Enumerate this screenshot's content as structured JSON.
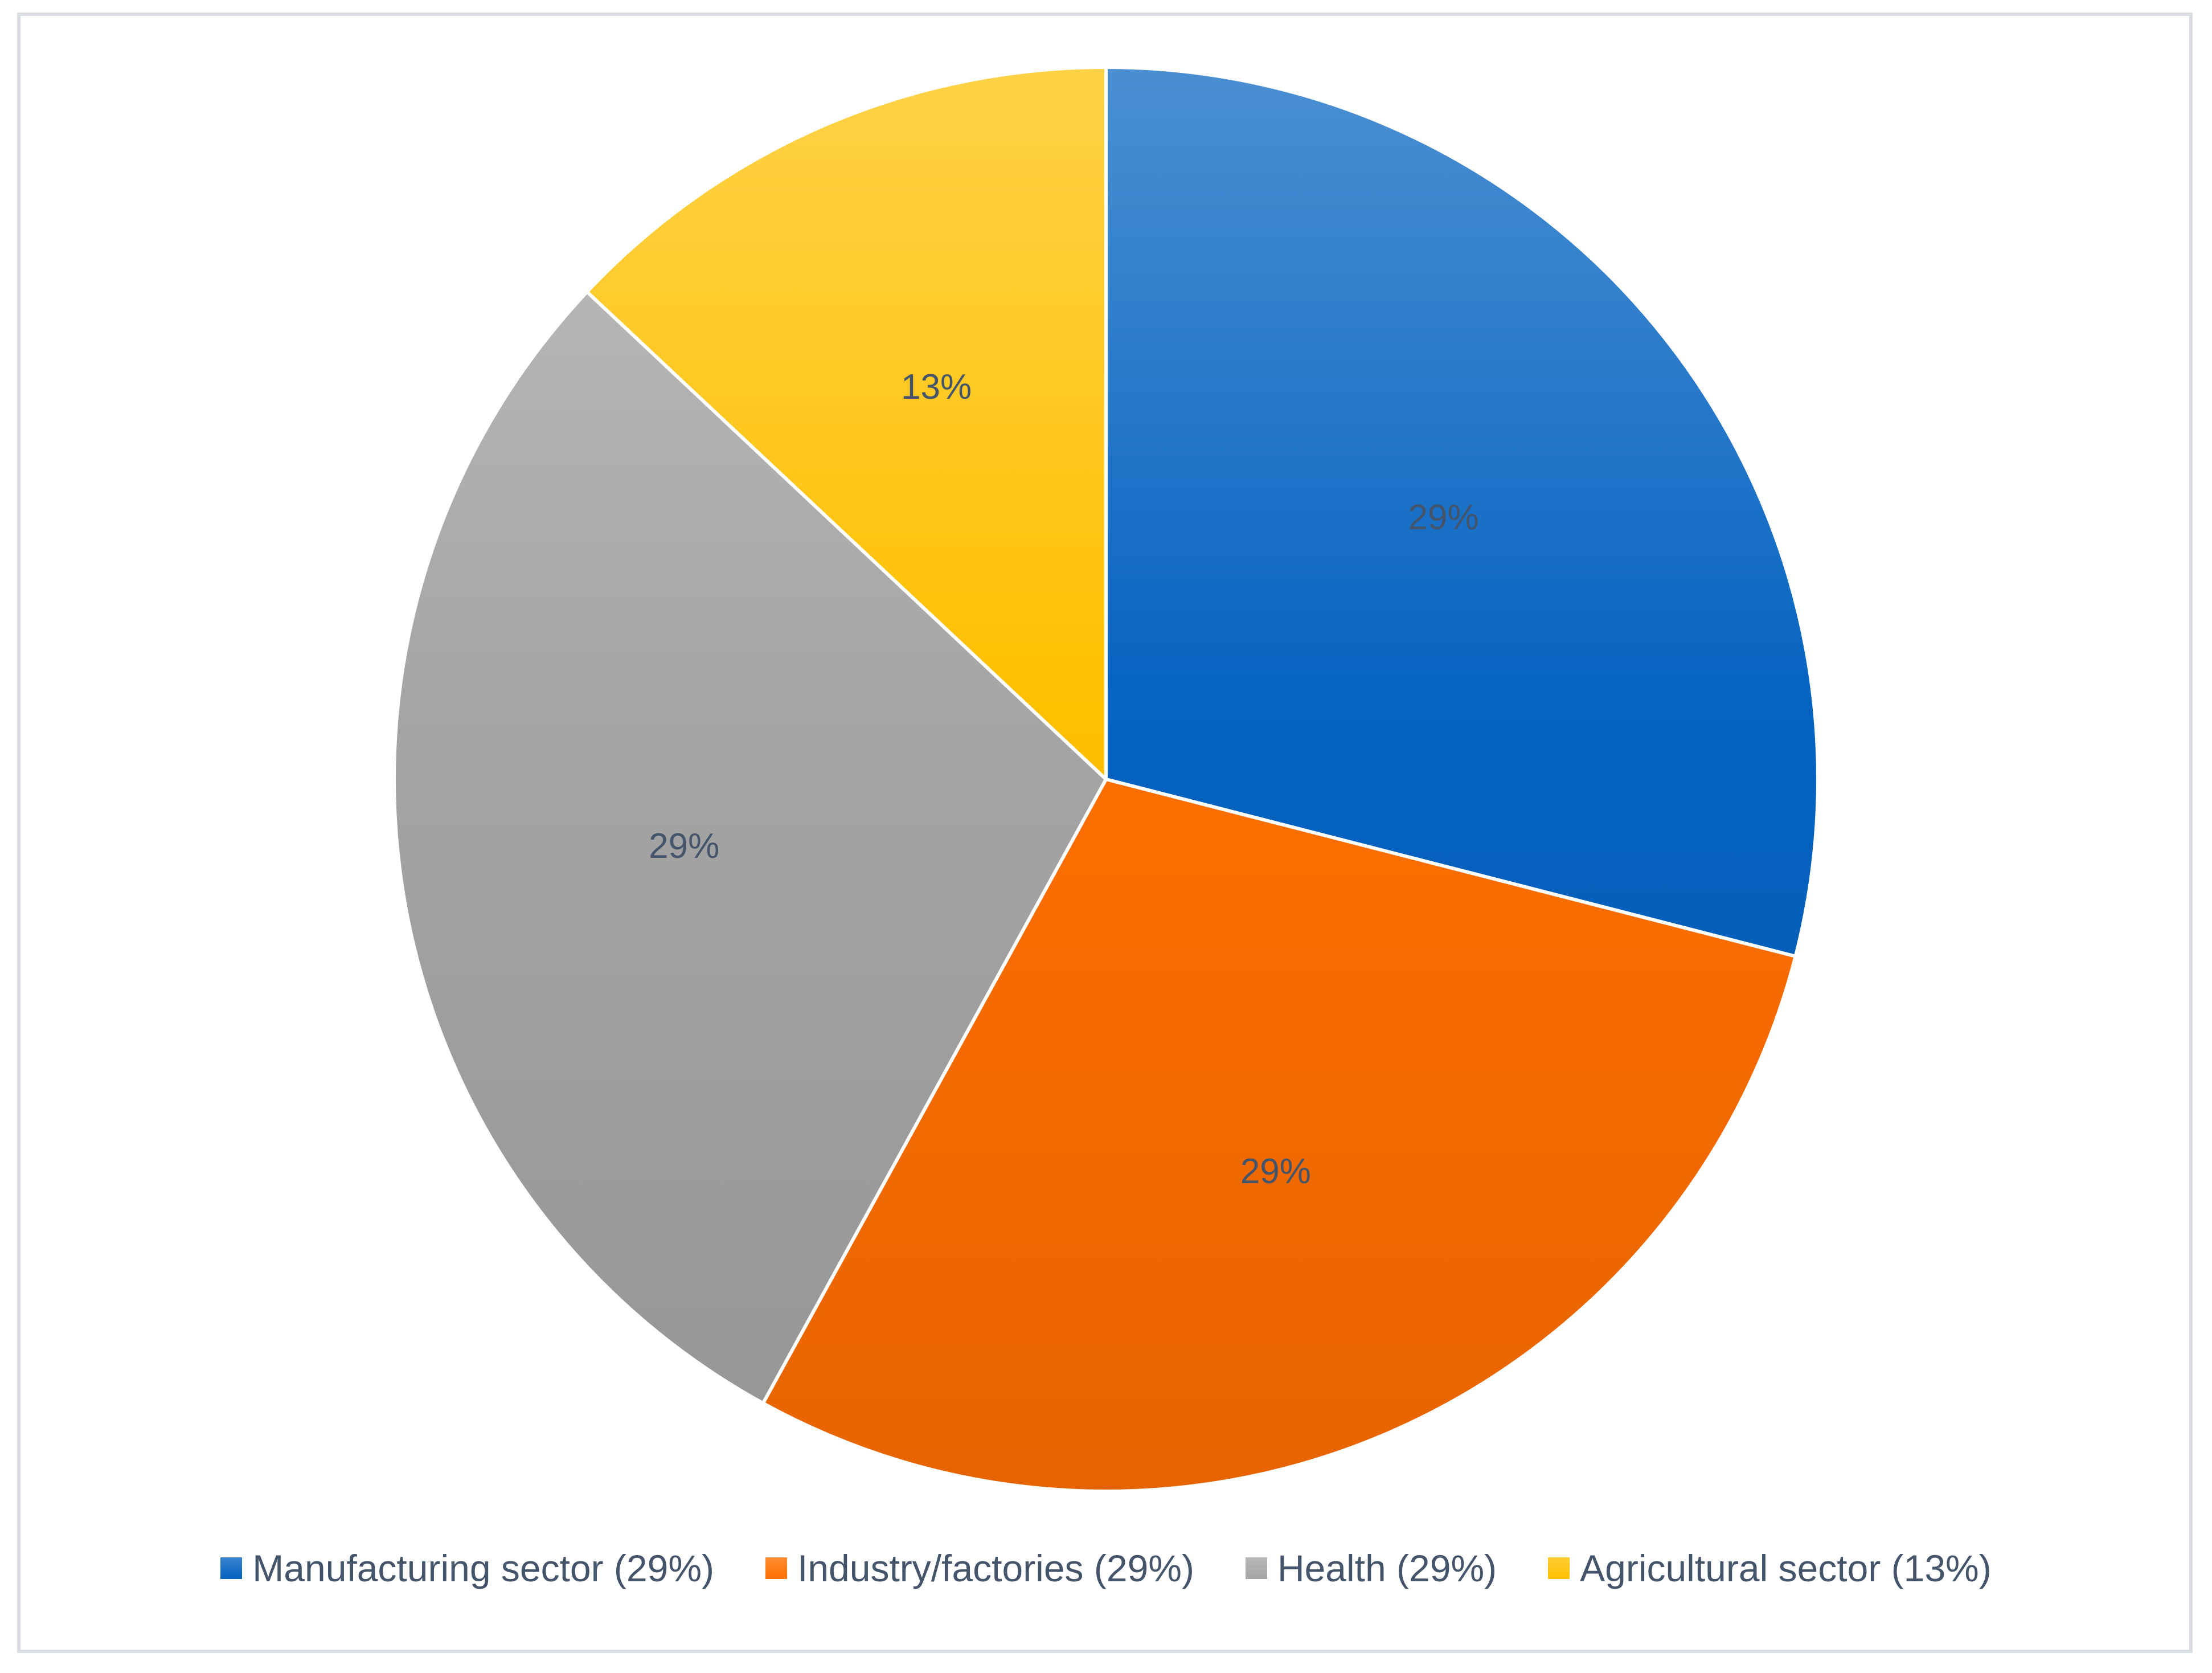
{
  "chart_data": {
    "type": "pie",
    "title": "",
    "start_angle_deg": 0,
    "direction": "clockwise",
    "slices": [
      {
        "label": "Manufacturing sector (29%)",
        "value": 29,
        "data_label": "29%",
        "color": "#0563C1"
      },
      {
        "label": "Industry/factories (29%)",
        "value": 29,
        "data_label": "29%",
        "color": "#FF6F00"
      },
      {
        "label": "Health (29%)",
        "value": 29,
        "data_label": "29%",
        "color": "#A5A5A5"
      },
      {
        "label": "Agricultural sector (13%)",
        "value": 13,
        "data_label": "13%",
        "color": "#FFC000"
      }
    ],
    "legend": {
      "position": "bottom"
    },
    "label_color": "#44546A"
  }
}
